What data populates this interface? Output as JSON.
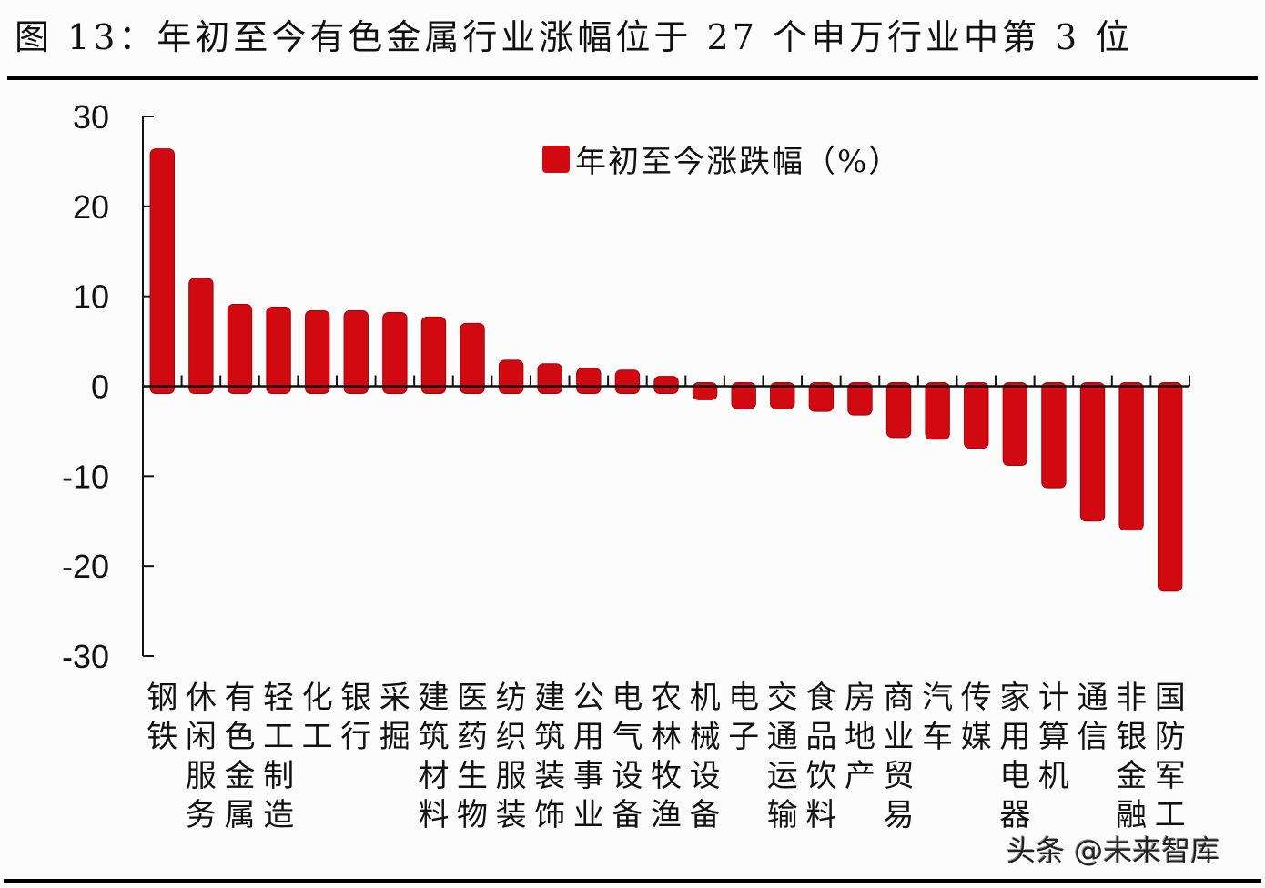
{
  "header": {
    "title": "图 13：年初至今有色金属行业涨幅位于 27 个申万行业中第 3 位"
  },
  "legend": {
    "label": "年初至今涨跌幅（%）",
    "color": "#d10a12"
  },
  "watermark": "头条 @未来智库",
  "chart_data": {
    "type": "bar",
    "title": "年初至今有色金属行业涨幅位于 27 个申万行业中第 3 位",
    "xlabel": "",
    "ylabel": "",
    "ylim": [
      -30,
      30
    ],
    "yticks": [
      30,
      20,
      10,
      0,
      -10,
      -20,
      -30
    ],
    "grid": false,
    "legend_position": "top-center",
    "bar_color": "#d10a12",
    "categories": [
      "钢铁",
      "休闲服务",
      "有色金属",
      "轻工制造",
      "化工",
      "银行",
      "采掘",
      "建筑材料",
      "医药生物",
      "纺织服装",
      "建筑装饰",
      "公用事业",
      "电气设备",
      "农林牧渔",
      "机械设备",
      "电子",
      "交通运输",
      "食品饮料",
      "房地产",
      "商业贸易",
      "汽车",
      "传媒",
      "家用电器",
      "计算机",
      "通信",
      "非银金融",
      "国防军工"
    ],
    "series": [
      {
        "name": "年初至今涨跌幅（%）",
        "values": [
          26.4,
          12.0,
          9.1,
          8.8,
          8.4,
          8.4,
          8.2,
          7.7,
          7.0,
          2.9,
          2.5,
          2.0,
          1.8,
          1.1,
          -1.5,
          -2.5,
          -2.5,
          -2.8,
          -3.2,
          -5.7,
          -5.9,
          -6.9,
          -8.8,
          -11.3,
          -15.0,
          -16.0,
          -22.8
        ]
      }
    ]
  }
}
